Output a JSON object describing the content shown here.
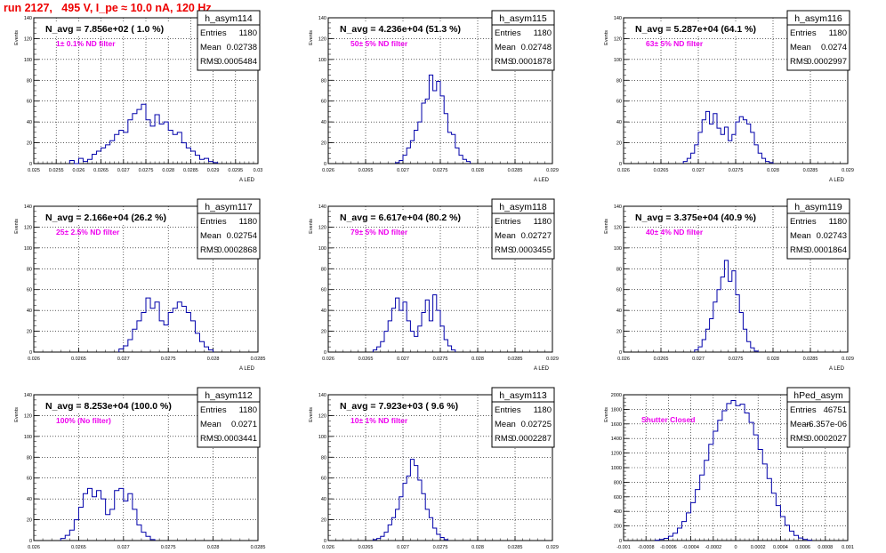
{
  "title": "run 2127,   495 V, I_pe ≈ 10.0 nA, 120 Hz",
  "chart_data": [
    {
      "type": "histogram",
      "name": "h_asym114",
      "n_avg": "N_avg = 7.856e+02 ( 1.0 %)",
      "filter": "1± 0.1% ND filter",
      "stats": {
        "entries_label": "Entries",
        "entries": "1180",
        "mean_label": "Mean",
        "mean": "0.02738",
        "rms_label": "RMS",
        "rms": "0.0005484"
      },
      "xlabel": "A_{LED}",
      "ylabel": "Events",
      "xlim": [
        0.025,
        0.03
      ],
      "ylim": [
        0,
        140
      ],
      "xticks": [
        "0.025",
        "0.0255",
        "0.026",
        "0.0265",
        "0.027",
        "0.0275",
        "0.028",
        "0.0285",
        "0.029",
        "0.0295",
        "0.03"
      ],
      "yticks": [
        0,
        20,
        40,
        60,
        80,
        100,
        120,
        140
      ],
      "x_start": 0.0258,
      "bin_width": 0.0001,
      "counts": [
        3,
        0,
        5,
        2,
        4,
        9,
        12,
        15,
        18,
        22,
        28,
        32,
        30,
        42,
        48,
        52,
        57,
        42,
        36,
        47,
        38,
        40,
        32,
        28,
        30,
        20,
        15,
        12,
        8,
        4,
        5,
        2,
        1
      ]
    },
    {
      "type": "histogram",
      "name": "h_asym115",
      "n_avg": "N_avg = 4.236e+04 (51.3 %)",
      "filter": "50± 5% ND filter",
      "stats": {
        "entries_label": "Entries",
        "entries": "1180",
        "mean_label": "Mean",
        "mean": "0.02748",
        "rms_label": "RMS",
        "rms": "0.0001878"
      },
      "xlabel": "A_{LED}",
      "ylabel": "Events",
      "xlim": [
        0.026,
        0.029
      ],
      "ylim": [
        0,
        140
      ],
      "xticks": [
        "0.026",
        "0.0265",
        "0.027",
        "0.0275",
        "0.028",
        "0.0285",
        "0.029"
      ],
      "yticks": [
        0,
        20,
        40,
        60,
        80,
        100,
        120,
        140
      ],
      "x_start": 0.0269,
      "bin_width": 5e-05,
      "counts": [
        1,
        3,
        8,
        15,
        22,
        32,
        40,
        58,
        62,
        85,
        70,
        79,
        65,
        48,
        30,
        28,
        15,
        8,
        4,
        2
      ]
    },
    {
      "type": "histogram",
      "name": "h_asym116",
      "n_avg": "N_avg = 5.287e+04 (64.1 %)",
      "filter": "63± 5% ND filter",
      "stats": {
        "entries_label": "Entries",
        "entries": "1180",
        "mean_label": "Mean",
        "mean": "0.0274",
        "rms_label": "RMS",
        "rms": "0.0002997"
      },
      "xlabel": "A_{LED}",
      "ylabel": "Events",
      "xlim": [
        0.026,
        0.029
      ],
      "ylim": [
        0,
        140
      ],
      "xticks": [
        "0.026",
        "0.0265",
        "0.027",
        "0.0275",
        "0.028",
        "0.0285",
        "0.029"
      ],
      "yticks": [
        0,
        20,
        40,
        60,
        80,
        100,
        120,
        140
      ],
      "x_start": 0.0268,
      "bin_width": 5e-05,
      "counts": [
        2,
        5,
        10,
        18,
        30,
        42,
        50,
        38,
        48,
        34,
        28,
        35,
        22,
        28,
        40,
        45,
        42,
        38,
        30,
        18,
        10,
        5,
        2,
        1
      ]
    },
    {
      "type": "histogram",
      "name": "h_asym117",
      "n_avg": "N_avg = 2.166e+04 (26.2 %)",
      "filter": "25± 2.5% ND filter",
      "stats": {
        "entries_label": "Entries",
        "entries": "1180",
        "mean_label": "Mean",
        "mean": "0.02754",
        "rms_label": "RMS",
        "rms": "0.0002868"
      },
      "xlabel": "A_{LED}",
      "ylabel": "Events",
      "xlim": [
        0.026,
        0.0285
      ],
      "ylim": [
        0,
        140
      ],
      "xticks": [
        "0.026",
        "0.0265",
        "0.027",
        "0.0275",
        "0.028",
        "0.0285"
      ],
      "yticks": [
        0,
        20,
        40,
        60,
        80,
        100,
        120,
        140
      ],
      "x_start": 0.02695,
      "bin_width": 5e-05,
      "counts": [
        3,
        6,
        12,
        22,
        30,
        38,
        52,
        42,
        48,
        30,
        26,
        38,
        42,
        48,
        44,
        38,
        30,
        18,
        10,
        5,
        2
      ]
    },
    {
      "type": "histogram",
      "name": "h_asym118",
      "n_avg": "N_avg = 6.617e+04 (80.2 %)",
      "filter": "79± 5% ND filter",
      "stats": {
        "entries_label": "Entries",
        "entries": "1180",
        "mean_label": "Mean",
        "mean": "0.02727",
        "rms_label": "RMS",
        "rms": "0.0003455"
      },
      "xlabel": "A_{LED}",
      "ylabel": "Events",
      "xlim": [
        0.026,
        0.029
      ],
      "ylim": [
        0,
        140
      ],
      "xticks": [
        "0.026",
        "0.0265",
        "0.027",
        "0.0275",
        "0.028",
        "0.0285",
        "0.029"
      ],
      "yticks": [
        0,
        20,
        40,
        60,
        80,
        100,
        120,
        140
      ],
      "x_start": 0.0266,
      "bin_width": 5e-05,
      "counts": [
        2,
        5,
        10,
        20,
        30,
        42,
        52,
        40,
        48,
        30,
        20,
        15,
        25,
        38,
        50,
        30,
        55,
        40,
        25,
        12,
        6,
        2
      ]
    },
    {
      "type": "histogram",
      "name": "h_asym119",
      "n_avg": "N_avg = 3.375e+04 (40.9 %)",
      "filter": "40± 4% ND filter",
      "stats": {
        "entries_label": "Entries",
        "entries": "1180",
        "mean_label": "Mean",
        "mean": "0.02743",
        "rms_label": "RMS",
        "rms": "0.0001864"
      },
      "xlabel": "A_{LED}",
      "ylabel": "Events",
      "xlim": [
        0.026,
        0.029
      ],
      "ylim": [
        0,
        140
      ],
      "xticks": [
        "0.026",
        "0.0265",
        "0.027",
        "0.0275",
        "0.028",
        "0.0285",
        "0.029"
      ],
      "yticks": [
        0,
        20,
        40,
        60,
        80,
        100,
        120,
        140
      ],
      "x_start": 0.02695,
      "bin_width": 5e-05,
      "counts": [
        2,
        5,
        12,
        22,
        32,
        48,
        60,
        72,
        88,
        68,
        78,
        55,
        38,
        22,
        10,
        4,
        1
      ]
    },
    {
      "type": "histogram",
      "name": "h_asym112",
      "n_avg": "N_avg = 8.253e+04 (100.0 %)",
      "filter": "100% (No filter)",
      "stats": {
        "entries_label": "Entries",
        "entries": "1180",
        "mean_label": "Mean",
        "mean": "0.0271",
        "rms_label": "RMS",
        "rms": "0.0003441"
      },
      "xlabel": "A_{LED}",
      "ylabel": "Events",
      "xlim": [
        0.026,
        0.0285
      ],
      "ylim": [
        0,
        140
      ],
      "xticks": [
        "0.026",
        "0.0265",
        "0.027",
        "0.0275",
        "0.028",
        "0.0285"
      ],
      "yticks": [
        0,
        20,
        40,
        60,
        80,
        100,
        120,
        140
      ],
      "x_start": 0.0263,
      "bin_width": 5e-05,
      "counts": [
        2,
        5,
        10,
        20,
        32,
        45,
        50,
        42,
        48,
        40,
        25,
        30,
        48,
        50,
        38,
        45,
        30,
        15,
        8,
        4,
        1
      ]
    },
    {
      "type": "histogram",
      "name": "h_asym113",
      "n_avg": "N_avg = 7.923e+03 ( 9.6 %)",
      "filter": "10± 1% ND filter",
      "stats": {
        "entries_label": "Entries",
        "entries": "1180",
        "mean_label": "Mean",
        "mean": "0.02725",
        "rms_label": "RMS",
        "rms": "0.0002287"
      },
      "xlabel": "A_{LED}",
      "ylabel": "Events",
      "xlim": [
        0.026,
        0.029
      ],
      "ylim": [
        0,
        140
      ],
      "xticks": [
        "0.026",
        "0.0265",
        "0.027",
        "0.0275",
        "0.028",
        "0.0285",
        "0.029"
      ],
      "yticks": [
        0,
        20,
        40,
        60,
        80,
        100,
        120,
        140
      ],
      "x_start": 0.0266,
      "bin_width": 5e-05,
      "counts": [
        1,
        2,
        4,
        8,
        15,
        22,
        30,
        42,
        55,
        62,
        78,
        72,
        58,
        45,
        30,
        22,
        12,
        6,
        3,
        1
      ]
    },
    {
      "type": "histogram",
      "name": "hPed_asym",
      "n_avg": "",
      "filter": "Shutter Closed",
      "stats": {
        "entries_label": "Entries",
        "entries": "46751",
        "mean_label": "Mean",
        "mean": "-6.357e-06",
        "rms_label": "RMS",
        "rms": "0.0002027"
      },
      "xlabel": "",
      "ylabel": "Events",
      "xlim": [
        -0.001,
        0.001
      ],
      "ylim": [
        0,
        2000
      ],
      "xticks": [
        "-0.001",
        "-0.0008",
        "-0.0006",
        "-0.0004",
        "-0.0002",
        "0",
        "0.0002",
        "0.0004",
        "0.0006",
        "0.0008",
        "0.001"
      ],
      "yticks": [
        0,
        200,
        400,
        600,
        800,
        1000,
        1200,
        1400,
        1600,
        1800,
        2000
      ],
      "x_start": -0.00072,
      "bin_width": 4e-05,
      "counts": [
        5,
        15,
        30,
        60,
        100,
        170,
        260,
        380,
        520,
        700,
        900,
        1100,
        1320,
        1500,
        1650,
        1780,
        1880,
        1920,
        1850,
        1870,
        1750,
        1620,
        1450,
        1250,
        1050,
        850,
        650,
        480,
        330,
        210,
        130,
        70,
        35,
        15,
        5
      ]
    }
  ]
}
